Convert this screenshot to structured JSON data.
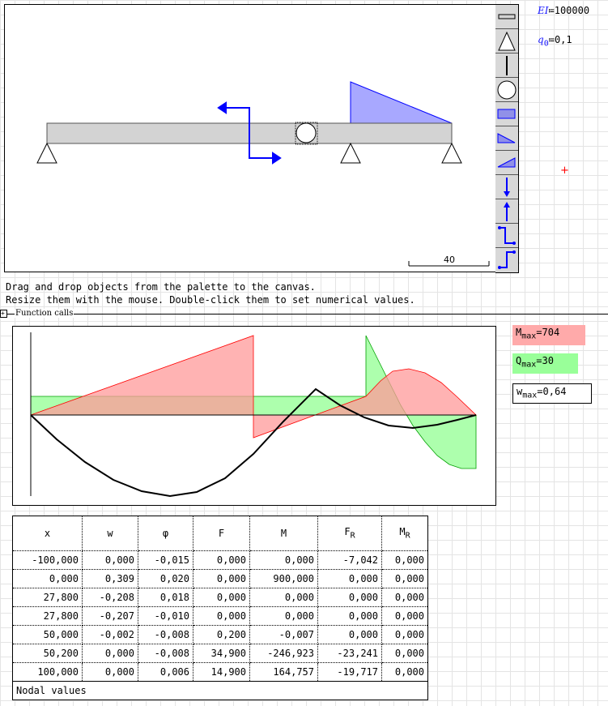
{
  "variables": {
    "EI": {
      "name": "EI",
      "value": "100000"
    },
    "q0": {
      "name": "q",
      "sub": "0",
      "value": "0,1"
    }
  },
  "canvas": {
    "scale_label": "40",
    "palette_items": [
      "beam",
      "pin-support",
      "fixed-support",
      "hinge",
      "uniform-load",
      "decreasing-load",
      "increasing-load",
      "force-down",
      "force-up",
      "moment-cw",
      "moment-ccw"
    ]
  },
  "hints": [
    "Drag and drop objects from the palette to the canvas.",
    "Resize them with the mouse. Double-click them to set numerical values."
  ],
  "section": {
    "label": "Function calls"
  },
  "results": {
    "M_max": {
      "name": "M",
      "sub": "max",
      "value": "704",
      "color": "#ffaaaa"
    },
    "Q_max": {
      "name": "Q",
      "sub": "max",
      "value": "30",
      "color": "#99ff99"
    },
    "w_max": {
      "name": "w",
      "sub": "max",
      "value": "0,64"
    }
  },
  "table": {
    "headers": [
      {
        "t": "x"
      },
      {
        "t": "w"
      },
      {
        "t": "φ"
      },
      {
        "t": "F"
      },
      {
        "t": "M"
      },
      {
        "t": "F",
        "sub": "R"
      },
      {
        "t": "M",
        "sub": "R"
      }
    ],
    "rows": [
      [
        "-100,000",
        "0,000",
        "-0,015",
        "0,000",
        "0,000",
        "-7,042",
        "0,000"
      ],
      [
        "0,000",
        "0,309",
        "0,020",
        "0,000",
        "900,000",
        "0,000",
        "0,000"
      ],
      [
        "27,800",
        "-0,208",
        "0,018",
        "0,000",
        "0,000",
        "0,000",
        "0,000"
      ],
      [
        "27,800",
        "-0,207",
        "-0,010",
        "0,000",
        "0,000",
        "0,000",
        "0,000"
      ],
      [
        "50,000",
        "-0,002",
        "-0,008",
        "0,200",
        "-0,007",
        "0,000",
        "0,000"
      ],
      [
        "50,200",
        "0,000",
        "-0,008",
        "34,900",
        "-246,923",
        "-23,241",
        "0,000"
      ],
      [
        "100,000",
        "0,000",
        "0,006",
        "14,900",
        "164,757",
        "-19,717",
        "0,000"
      ]
    ],
    "caption": "Nodal values"
  }
}
